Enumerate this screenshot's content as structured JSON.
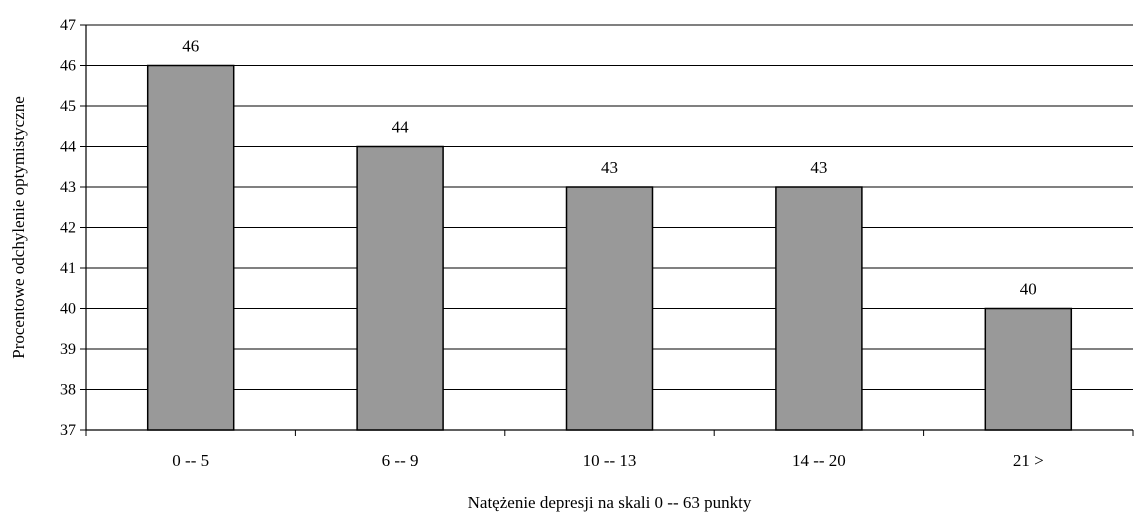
{
  "chart_data": {
    "type": "bar",
    "title": "",
    "xlabel": "Natężenie depresji na skali 0 -- 63 punkty",
    "ylabel": "Procentowe odchylenie optymistyczne",
    "categories": [
      "0 -- 5",
      "6 -- 9",
      "10 -- 13",
      "14 -- 20",
      "21  >"
    ],
    "values": [
      46,
      44,
      43,
      43,
      40
    ],
    "data_labels": [
      "46",
      "44",
      "43",
      "43",
      "40"
    ],
    "ylim": [
      37,
      47
    ],
    "yticks": [
      37,
      38,
      39,
      40,
      41,
      42,
      43,
      44,
      45,
      46,
      47
    ],
    "grid": true,
    "legend": "none",
    "bar_color": "#999999",
    "bar_edge_color": "#000000"
  }
}
